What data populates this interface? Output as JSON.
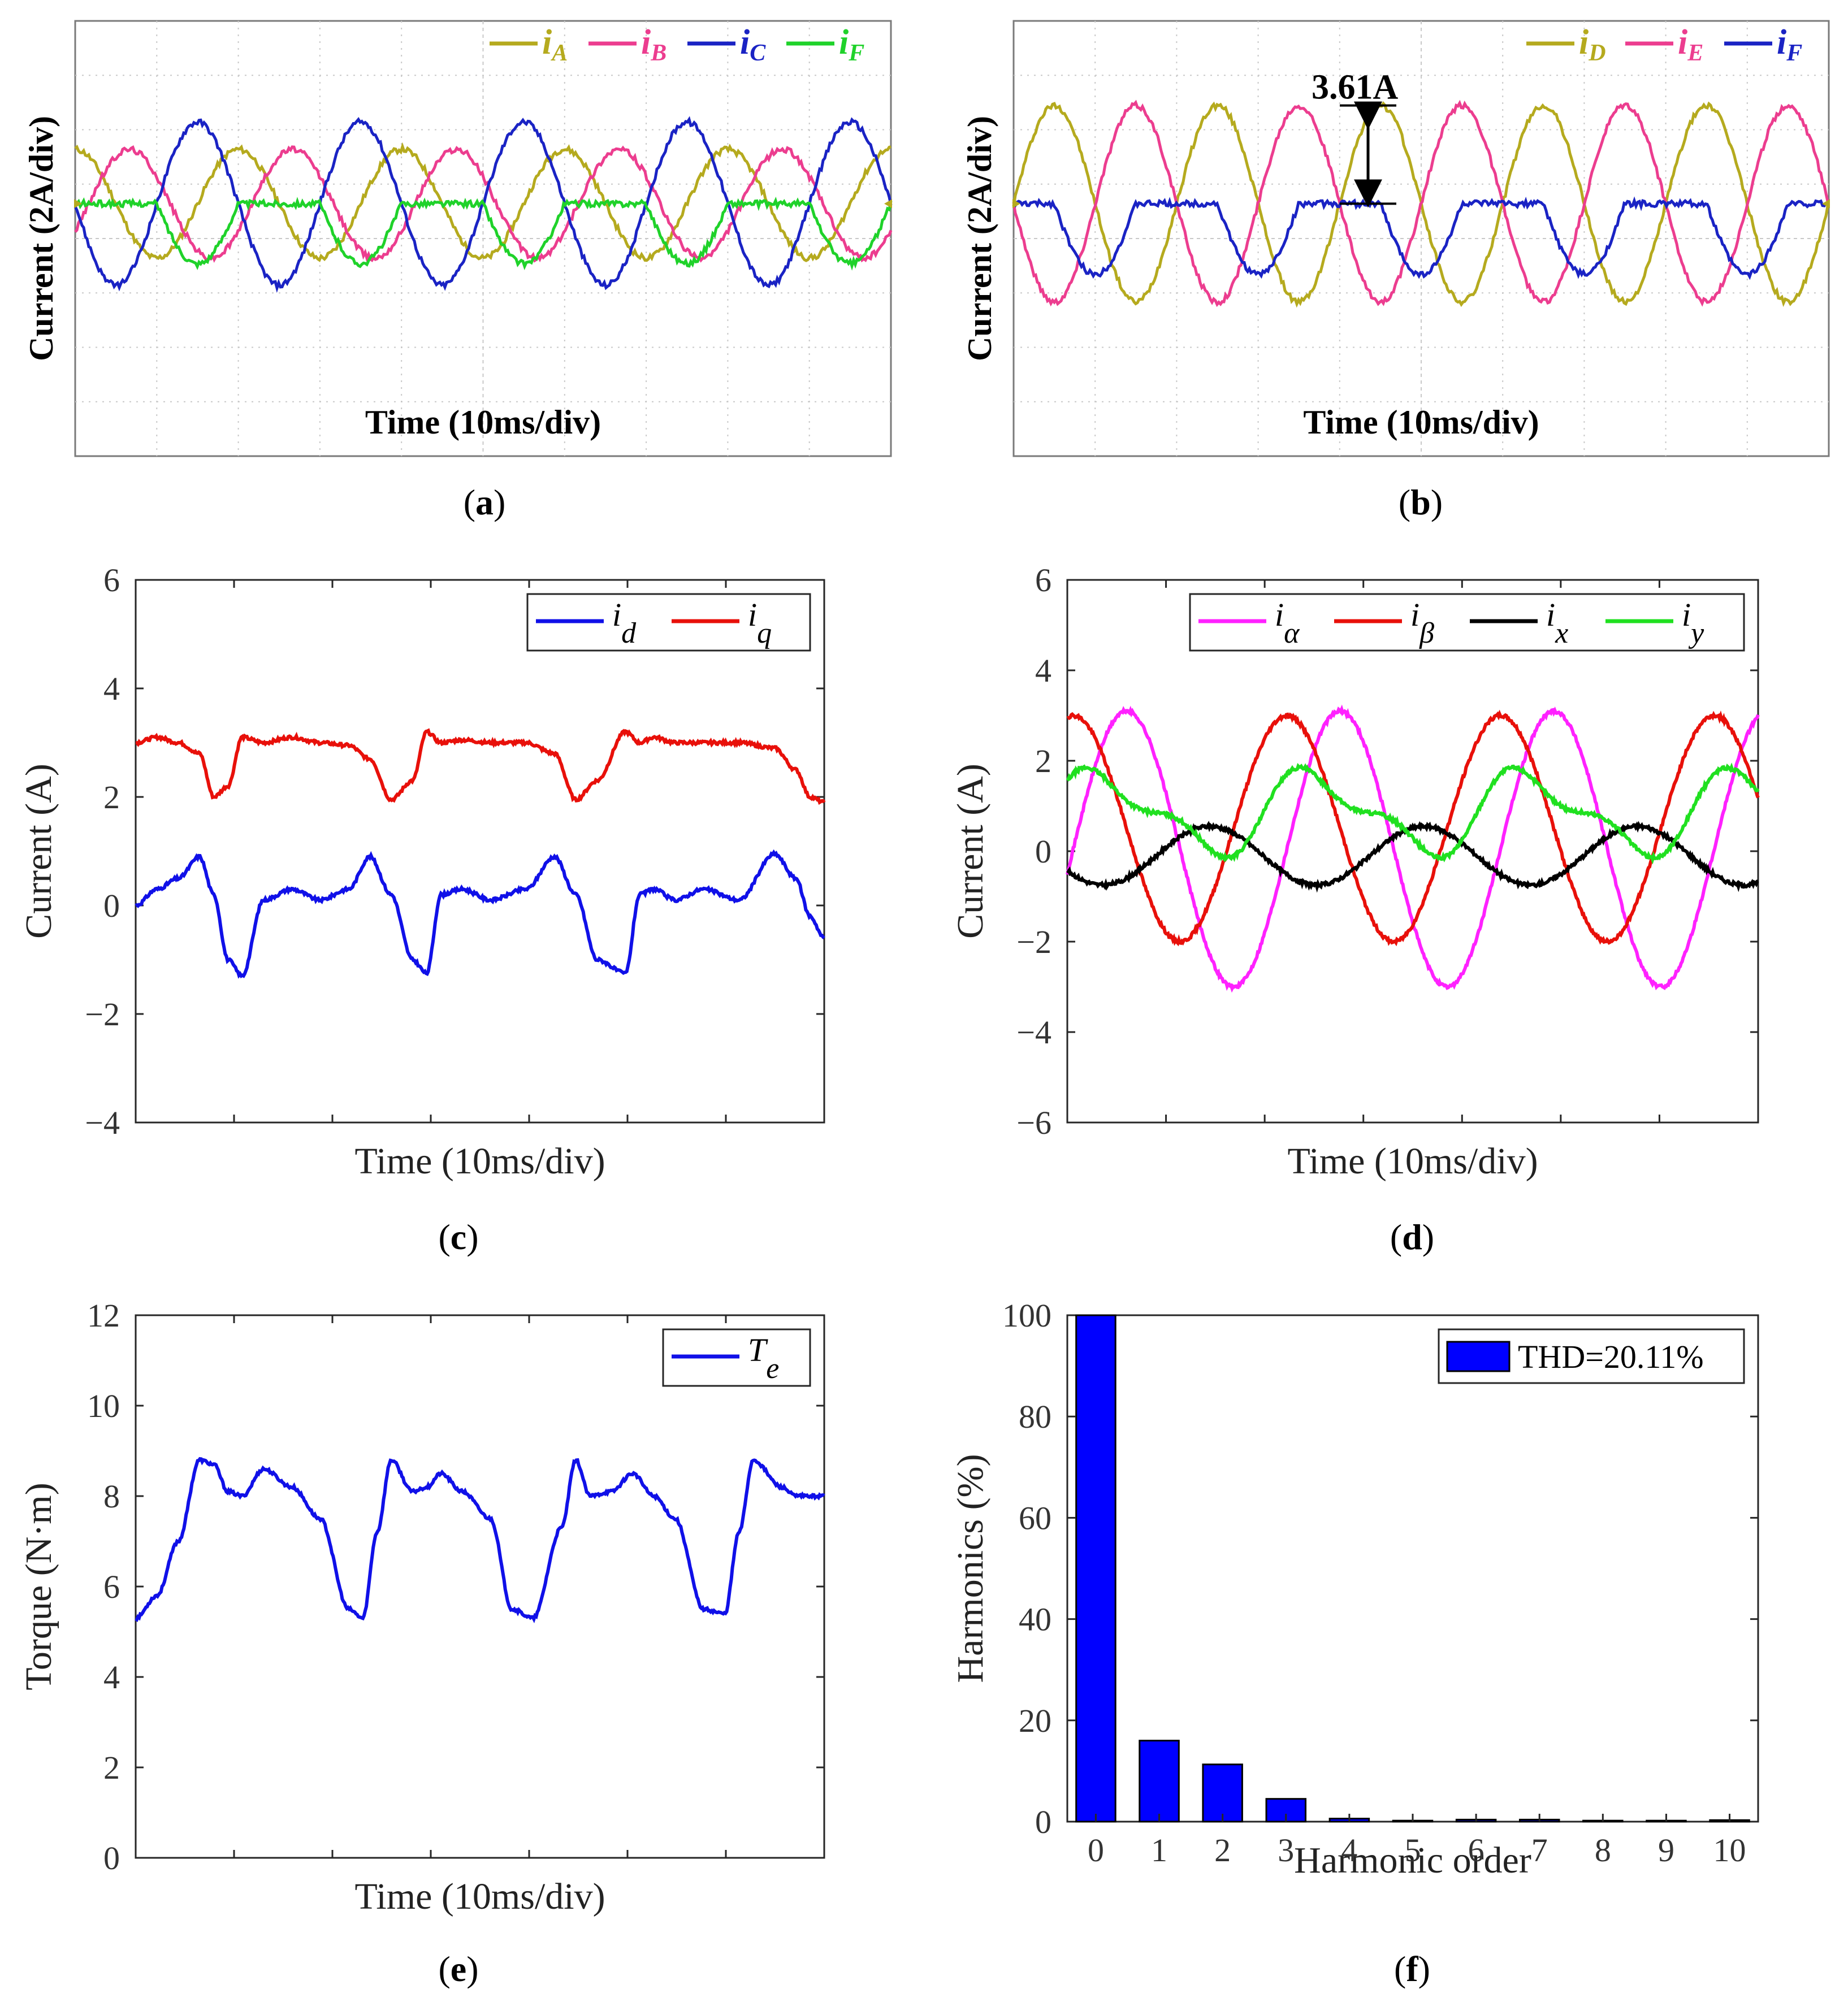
{
  "panels": {
    "a": {
      "caption_letter": "a",
      "ylabel": "Current (2A/div)",
      "xlabel": "Time (10ms/div)",
      "legend": [
        {
          "base": "i",
          "sub": "A",
          "color": "#b5aa1e"
        },
        {
          "base": "i",
          "sub": "B",
          "color": "#ec3d8f"
        },
        {
          "base": "i",
          "sub": "C",
          "color": "#1a23c4"
        },
        {
          "base": "i",
          "sub": "F",
          "color": "#1fd22a"
        }
      ]
    },
    "b": {
      "caption_letter": "b",
      "ylabel": "Current (2A/div)",
      "xlabel": "Time (10ms/div)",
      "annotation": "3.61A",
      "legend": [
        {
          "base": "i",
          "sub": "D",
          "color": "#b5aa1e"
        },
        {
          "base": "i",
          "sub": "E",
          "color": "#ec3d8f"
        },
        {
          "base": "i",
          "sub": "F",
          "color": "#1a23c4"
        }
      ]
    },
    "c": {
      "caption_letter": "c",
      "ylabel": "Current (A)",
      "xlabel": "Time (10ms/div)",
      "legend": [
        {
          "base": "i",
          "sub": "d",
          "color": "#1010e8"
        },
        {
          "base": "i",
          "sub": "q",
          "color": "#e8100a"
        }
      ]
    },
    "d": {
      "caption_letter": "d",
      "ylabel": "Current (A)",
      "xlabel": "Time  (10ms/div)",
      "legend": [
        {
          "base": "i",
          "sub": "α",
          "color": "#ff21ff"
        },
        {
          "base": "i",
          "sub": "β",
          "color": "#e8100a"
        },
        {
          "base": "i",
          "sub": "x",
          "color": "#000000"
        },
        {
          "base": "i",
          "sub": "y",
          "color": "#20e020"
        }
      ]
    },
    "e": {
      "caption_letter": "e",
      "ylabel": "Torque (N·m)",
      "xlabel": "Time (10ms/div)",
      "legend": [
        {
          "base": "T",
          "sub": "e",
          "color": "#1010e8"
        }
      ]
    },
    "f": {
      "caption_letter": "f",
      "ylabel": "Harmonics (%)",
      "xlabel": "Harmonic order",
      "legend": [
        {
          "base": "THD=20.11%",
          "sub": "",
          "color": "#0000ff"
        }
      ]
    }
  },
  "chart_data": [
    {
      "panel": "a",
      "type": "line",
      "xlabel": "Time (10ms/div)",
      "ylabel": "Current (2A/div)",
      "x_range_div": [
        0,
        10
      ],
      "y_range_div": [
        -4,
        4
      ],
      "grid": true,
      "legend_position": "top-right",
      "series": [
        {
          "name": "iA",
          "color": "#b5aa1e",
          "amplitude_A": 2.0,
          "frequency_Hz": 50,
          "phase_deg": 90
        },
        {
          "name": "iB",
          "color": "#ec3d8f",
          "amplitude_A": 2.0,
          "frequency_Hz": 50,
          "phase_deg": -30
        },
        {
          "name": "iC",
          "color": "#1a23c4",
          "amplitude_A": 3.0,
          "frequency_Hz": 50,
          "phase_deg": 180
        },
        {
          "name": "iF",
          "color": "#1fd22a",
          "amplitude_A": 2.2,
          "frequency_Hz": 50,
          "phase_deg": 0,
          "note": "half-wave clipped"
        }
      ]
    },
    {
      "panel": "b",
      "type": "line",
      "xlabel": "Time (10ms/div)",
      "ylabel": "Current (2A/div)",
      "x_range_div": [
        0,
        10
      ],
      "y_range_div": [
        -4,
        4
      ],
      "grid": true,
      "legend_position": "top-right",
      "annotation": "3.61A",
      "series": [
        {
          "name": "iD",
          "color": "#b5aa1e",
          "amplitude_A": 3.61,
          "frequency_Hz": 50,
          "phase_deg": 0
        },
        {
          "name": "iE",
          "color": "#ec3d8f",
          "amplitude_A": 3.61,
          "frequency_Hz": 50,
          "phase_deg": 180
        },
        {
          "name": "iF",
          "color": "#1a23c4",
          "amplitude_A": 2.6,
          "frequency_Hz": 50,
          "phase_deg": 90,
          "note": "half-wave clipped"
        }
      ]
    },
    {
      "panel": "c",
      "type": "line",
      "xlabel": "Time (10ms/div)",
      "ylabel": "Current (A)",
      "ylim": [
        -4,
        6
      ],
      "yticks": [
        -4,
        -2,
        0,
        2,
        4,
        6
      ],
      "legend_position": "top-right",
      "series": [
        {
          "name": "id",
          "color": "#1010e8",
          "x": [
            0,
            0.3,
            0.6,
            0.9,
            1.1,
            1.3,
            1.5,
            1.8,
            2.2,
            2.6,
            3.0,
            3.3,
            3.6,
            3.9,
            4.1,
            4.3,
            4.6,
            5.0,
            5.5,
            5.9,
            6.2,
            6.5,
            6.9,
            7.1,
            7.3,
            7.6,
            8.0,
            8.5,
            9.0,
            9.3,
            9.5,
            9.7
          ],
          "values": [
            0.0,
            0.3,
            0.5,
            0.9,
            0.2,
            -1.0,
            -1.3,
            0.1,
            0.3,
            0.1,
            0.3,
            0.9,
            0.2,
            -1.0,
            -1.25,
            0.2,
            0.3,
            0.1,
            0.3,
            0.9,
            0.2,
            -1.0,
            -1.25,
            0.2,
            0.3,
            0.1,
            0.3,
            0.1,
            0.95,
            0.5,
            -0.2,
            -0.6
          ]
        },
        {
          "name": "iq",
          "color": "#e8100a",
          "x": [
            0,
            0.3,
            0.6,
            0.9,
            1.1,
            1.3,
            1.5,
            1.8,
            2.2,
            2.6,
            3.0,
            3.3,
            3.6,
            3.9,
            4.1,
            4.3,
            4.6,
            5.0,
            5.5,
            5.9,
            6.2,
            6.5,
            6.9,
            7.1,
            7.3,
            7.6,
            8.0,
            8.5,
            9.0,
            9.3,
            9.5,
            9.7
          ],
          "values": [
            3.0,
            3.1,
            3.0,
            2.8,
            2.0,
            2.2,
            3.1,
            3.0,
            3.1,
            3.0,
            2.95,
            2.7,
            1.95,
            2.3,
            3.2,
            3.0,
            3.05,
            3.0,
            3.0,
            2.8,
            1.95,
            2.3,
            3.2,
            3.0,
            3.1,
            3.0,
            3.0,
            3.0,
            2.9,
            2.5,
            2.0,
            1.9
          ]
        }
      ]
    },
    {
      "panel": "d",
      "type": "line",
      "xlabel": "Time  (10ms/div)",
      "ylabel": "Current (A)",
      "ylim": [
        -6,
        6
      ],
      "yticks": [
        -6,
        -4,
        -2,
        0,
        2,
        4,
        6
      ],
      "legend_position": "top-right",
      "series": [
        {
          "name": "iα",
          "color": "#ff21ff",
          "amplitude": 3.05,
          "offset": 0.05,
          "period_div": 3.0,
          "phase_deg": -10
        },
        {
          "name": "iβ",
          "color": "#e8100a",
          "amplitude": 2.5,
          "offset": 0.5,
          "period_div": 3.0,
          "phase_deg": 80
        },
        {
          "name": "ix",
          "color": "#000000",
          "amplitude": 0.65,
          "offset": -0.1,
          "period_div": 3.0,
          "phase_deg": -150
        },
        {
          "name": "iy",
          "color": "#20e020",
          "amplitude": 0.8,
          "offset": 0.85,
          "period_div": 3.0,
          "phase_deg": 30
        }
      ]
    },
    {
      "panel": "e",
      "type": "line",
      "xlabel": "Time (10ms/div)",
      "ylabel": "Torque (N·m)",
      "ylim": [
        0,
        12
      ],
      "yticks": [
        0,
        2,
        4,
        6,
        8,
        10,
        12
      ],
      "legend_position": "top-right",
      "series": [
        {
          "name": "Te",
          "color": "#1010e8",
          "x": [
            0,
            0.3,
            0.6,
            0.9,
            1.1,
            1.3,
            1.5,
            1.8,
            2.2,
            2.6,
            3.0,
            3.2,
            3.4,
            3.6,
            3.9,
            4.1,
            4.3,
            4.6,
            5.0,
            5.3,
            5.6,
            6.0,
            6.2,
            6.4,
            6.7,
            7.0,
            7.3,
            7.6,
            8.0,
            8.3,
            8.5,
            8.7,
            9.1,
            9.3,
            9.7
          ],
          "values": [
            5.3,
            5.8,
            7.0,
            8.8,
            8.7,
            8.1,
            8.0,
            8.6,
            8.2,
            7.5,
            5.5,
            5.3,
            7.2,
            8.8,
            8.1,
            8.2,
            8.5,
            8.1,
            7.5,
            5.5,
            5.3,
            7.3,
            8.8,
            8.0,
            8.1,
            8.5,
            8.0,
            7.5,
            5.5,
            5.4,
            7.2,
            8.8,
            8.2,
            8.0,
            8.0
          ]
        }
      ]
    },
    {
      "panel": "f",
      "type": "bar",
      "xlabel": "Harmonic order",
      "ylabel": "Harmonics (%)",
      "ylim": [
        0,
        100
      ],
      "yticks": [
        0,
        20,
        40,
        60,
        80,
        100
      ],
      "legend_position": "top-right",
      "categories": [
        "0",
        "1",
        "2",
        "3",
        "4",
        "5",
        "6",
        "7",
        "8",
        "9",
        "10"
      ],
      "values": [
        100,
        16.0,
        11.3,
        4.5,
        0.6,
        0.2,
        0.4,
        0.4,
        0.2,
        0.2,
        0.3
      ],
      "bar_color": "#0000ff",
      "legend_entry": "THD=20.11%"
    }
  ]
}
